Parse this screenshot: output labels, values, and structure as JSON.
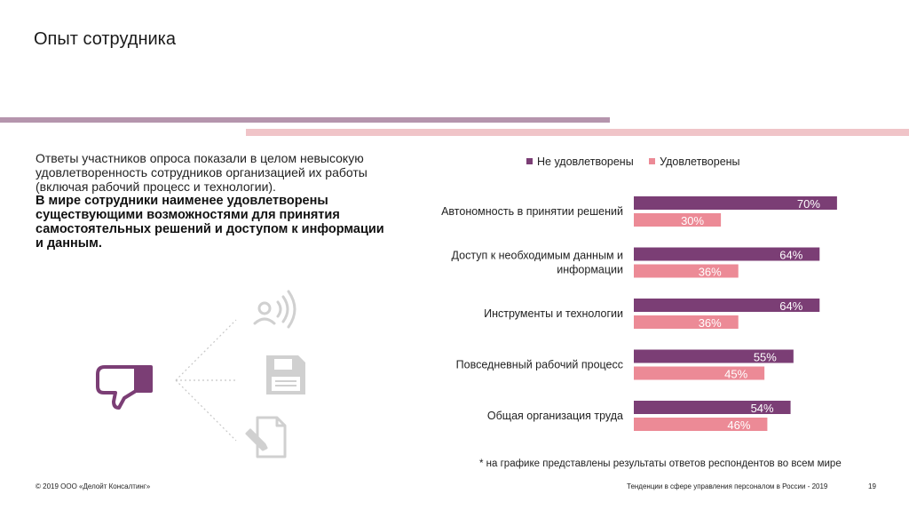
{
  "page": {
    "title": "Опыт сотрудника",
    "intro_text": "Ответы участников опроса показали в целом невысокую удовлетворенность сотрудников организацией их работы (включая рабочий процесс и технологии).",
    "intro_bold": "В мире сотрудники наименее удовлетворены существующими возможностями для принятия самостоятельных решений и доступом к информации и данным.",
    "note": "* на графике представлены результаты ответов респондентов во всем мире",
    "footer_left": "© 2019 ООО «Делойт Консалтинг»",
    "footer_right": "Тенденции в сфере управления персоналом в России - 2019",
    "page_number": "19"
  },
  "colors": {
    "series1": "#7b3e75",
    "series2": "#ec8a96",
    "accent_line1": "#b595ad",
    "accent_line2": "#f0c4c8",
    "icon_dark": "#7b3e75",
    "icon_light": "#d6d6d6"
  },
  "chart_data": {
    "type": "bar",
    "orientation": "horizontal",
    "categories": [
      [
        "Автономность в принятии решений"
      ],
      [
        "Доступ к необходимым данным и",
        "информации"
      ],
      [
        "Инструменты и технологии"
      ],
      [
        "Повседневный рабочий процесс"
      ],
      [
        "Общая организация труда"
      ]
    ],
    "series": [
      {
        "name": "Не удовлетворены",
        "values": [
          70,
          64,
          64,
          55,
          54
        ],
        "labels": [
          "70%",
          "64%",
          "64%",
          "55%",
          "54%"
        ]
      },
      {
        "name": "Удовлетворены",
        "values": [
          30,
          36,
          36,
          45,
          46
        ],
        "labels": [
          "30%",
          "36%",
          "36%",
          "45%",
          "46%"
        ]
      }
    ],
    "legend_position": "top",
    "xlim": [
      0,
      100
    ],
    "grid": false
  }
}
